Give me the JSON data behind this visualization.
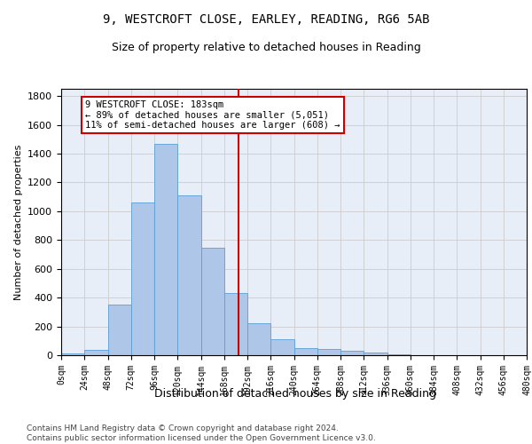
{
  "title": "9, WESTCROFT CLOSE, EARLEY, READING, RG6 5AB",
  "subtitle": "Size of property relative to detached houses in Reading",
  "xlabel": "Distribution of detached houses by size in Reading",
  "ylabel": "Number of detached properties",
  "bin_edges": [
    0,
    24,
    48,
    72,
    96,
    120,
    144,
    168,
    192,
    216,
    240,
    264,
    288,
    312,
    336,
    360,
    384,
    408,
    432,
    456,
    480
  ],
  "bar_heights": [
    10,
    35,
    350,
    1060,
    1470,
    1110,
    745,
    430,
    225,
    110,
    52,
    42,
    28,
    20,
    8,
    0,
    0,
    0,
    0,
    0
  ],
  "bar_color": "#aec6e8",
  "bar_edge_color": "#5a9fd4",
  "grid_color": "#cccccc",
  "vline_x": 183,
  "vline_color": "#cc0000",
  "annotation_text": "9 WESTCROFT CLOSE: 183sqm\n← 89% of detached houses are smaller (5,051)\n11% of semi-detached houses are larger (608) →",
  "annotation_box_color": "#cc0000",
  "ylim": [
    0,
    1850
  ],
  "yticks": [
    0,
    200,
    400,
    600,
    800,
    1000,
    1200,
    1400,
    1600,
    1800
  ],
  "footnote": "Contains HM Land Registry data © Crown copyright and database right 2024.\nContains public sector information licensed under the Open Government Licence v3.0.",
  "bg_color": "#e8eef8",
  "title_fontsize": 10,
  "subtitle_fontsize": 9
}
